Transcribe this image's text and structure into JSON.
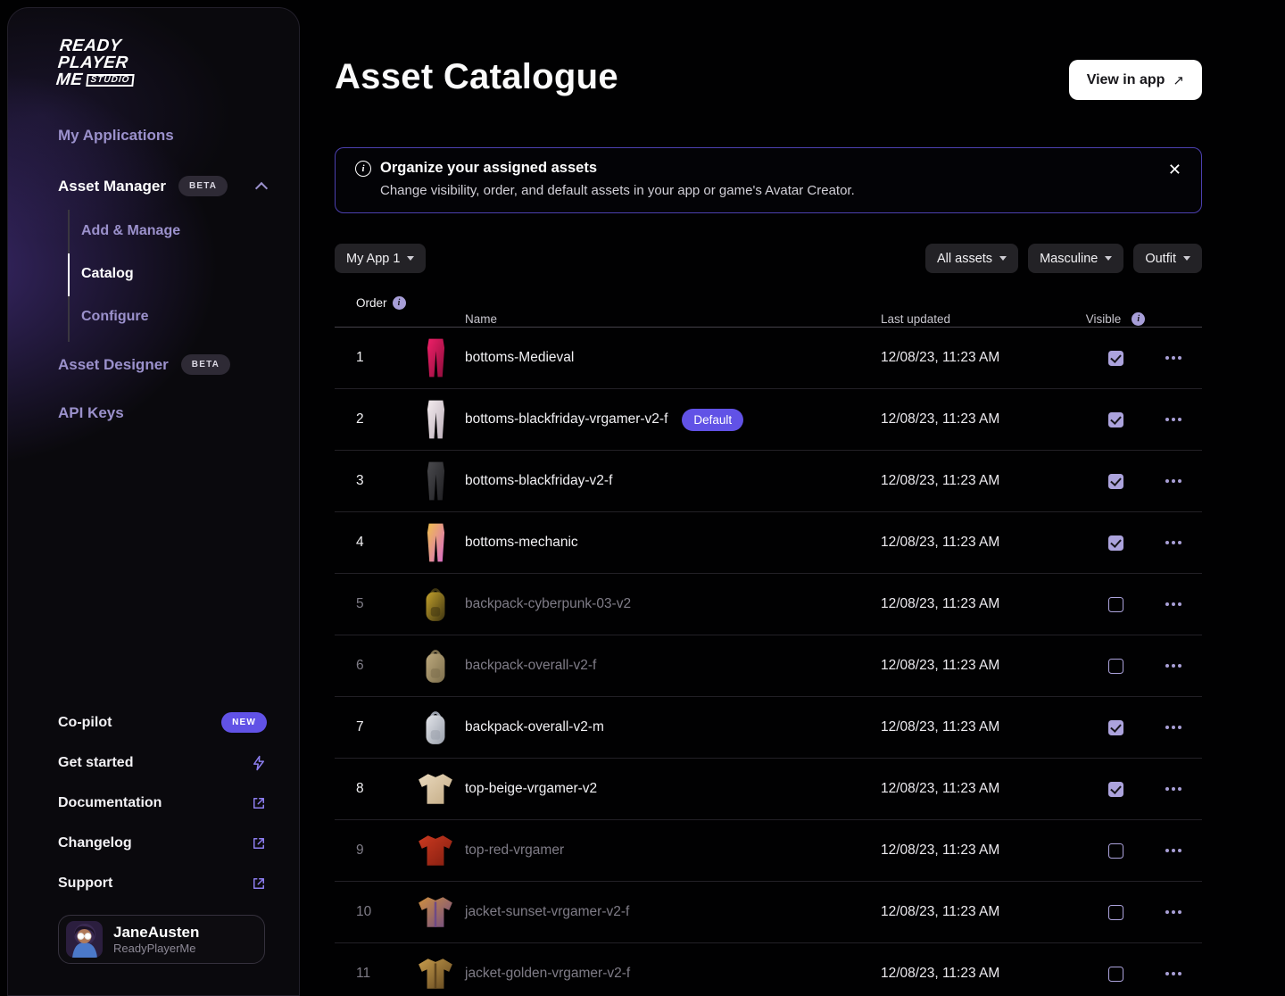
{
  "sidebar": {
    "logo": {
      "line1": "READY",
      "line2": "PLAYER",
      "line3": "ME",
      "studio": "STUDIO"
    },
    "items": {
      "my_applications": "My Applications",
      "asset_manager": "Asset Manager",
      "asset_manager_badge": "BETA",
      "add_manage": "Add & Manage",
      "catalog": "Catalog",
      "configure": "Configure",
      "asset_designer": "Asset Designer",
      "asset_designer_badge": "BETA",
      "api_keys": "API Keys",
      "co_pilot": "Co-pilot",
      "co_pilot_badge": "NEW",
      "get_started": "Get started",
      "documentation": "Documentation",
      "changelog": "Changelog",
      "support": "Support"
    },
    "user": {
      "name": "JaneAusten",
      "org": "ReadyPlayerMe"
    }
  },
  "header": {
    "title": "Asset Catalogue",
    "view_in_app_label": "View in app",
    "arrow": "↗"
  },
  "banner": {
    "title": "Organize your assigned assets",
    "subtitle": "Change visibility, order, and default assets in your app or game's Avatar Creator.",
    "close": "✕"
  },
  "filters": {
    "app_selector": "My App 1",
    "assets": "All assets",
    "gender": "Masculine",
    "category": "Outfit"
  },
  "table": {
    "headers": {
      "order": "Order",
      "name": "Name",
      "updated": "Last updated",
      "visible": "Visible"
    },
    "default_badge_label": "Default",
    "rows": [
      {
        "order": "1",
        "name": "bottoms-Medieval",
        "updated": "12/08/23, 11:23 AM",
        "visible": true,
        "default": false,
        "thumb": {
          "kind": "pants",
          "c1": "#ef2068",
          "c2": "#8f0d3c"
        }
      },
      {
        "order": "2",
        "name": "bottoms-blackfriday-vrgamer-v2-f",
        "updated": "12/08/23, 11:23 AM",
        "visible": true,
        "default": true,
        "thumb": {
          "kind": "pants",
          "c1": "#f3ebee",
          "c2": "#bdb0ba"
        }
      },
      {
        "order": "3",
        "name": "bottoms-blackfriday-v2-f",
        "updated": "12/08/23, 11:23 AM",
        "visible": true,
        "default": false,
        "thumb": {
          "kind": "pants",
          "c1": "#4a4a4e",
          "c2": "#1f1f22"
        }
      },
      {
        "order": "4",
        "name": "bottoms-mechanic",
        "updated": "12/08/23, 11:23 AM",
        "visible": true,
        "default": false,
        "thumb": {
          "kind": "pants",
          "c1": "#f0c04d",
          "c2": "#d969c9"
        }
      },
      {
        "order": "5",
        "name": "backpack-cyberpunk-03-v2",
        "updated": "12/08/23, 11:23 AM",
        "visible": false,
        "default": false,
        "thumb": {
          "kind": "backpack",
          "c1": "#c3a12c",
          "c2": "#3f3511"
        }
      },
      {
        "order": "6",
        "name": "backpack-overall-v2-f",
        "updated": "12/08/23, 11:23 AM",
        "visible": false,
        "default": false,
        "thumb": {
          "kind": "backpack",
          "c1": "#bda97d",
          "c2": "#7c6e4c"
        }
      },
      {
        "order": "7",
        "name": "backpack-overall-v2-m",
        "updated": "12/08/23, 11:23 AM",
        "visible": true,
        "default": false,
        "thumb": {
          "kind": "backpack",
          "c1": "#e2e4e9",
          "c2": "#9aa0ac"
        }
      },
      {
        "order": "8",
        "name": "top-beige-vrgamer-v2",
        "updated": "12/08/23, 11:23 AM",
        "visible": true,
        "default": false,
        "thumb": {
          "kind": "shirt",
          "c1": "#ead9bd",
          "c2": "#c3ab85"
        }
      },
      {
        "order": "9",
        "name": "top-red-vrgamer",
        "updated": "12/08/23, 11:23 AM",
        "visible": false,
        "default": false,
        "thumb": {
          "kind": "shirt",
          "c1": "#cc3a20",
          "c2": "#821d10"
        }
      },
      {
        "order": "10",
        "name": "jacket-sunset-vrgamer-v2-f",
        "updated": "12/08/23, 11:23 AM",
        "visible": false,
        "default": false,
        "thumb": {
          "kind": "jacket",
          "c1": "#cf8f3f",
          "c2": "#6e4a86"
        }
      },
      {
        "order": "11",
        "name": "jacket-golden-vrgamer-v2-f",
        "updated": "12/08/23, 11:23 AM",
        "visible": false,
        "default": false,
        "thumb": {
          "kind": "jacket",
          "c1": "#c89c4c",
          "c2": "#5f451e"
        }
      }
    ]
  },
  "colors": {
    "accent": "#6152e6",
    "lavender": "#aca3dd",
    "banner_border": "#4c40b0"
  }
}
